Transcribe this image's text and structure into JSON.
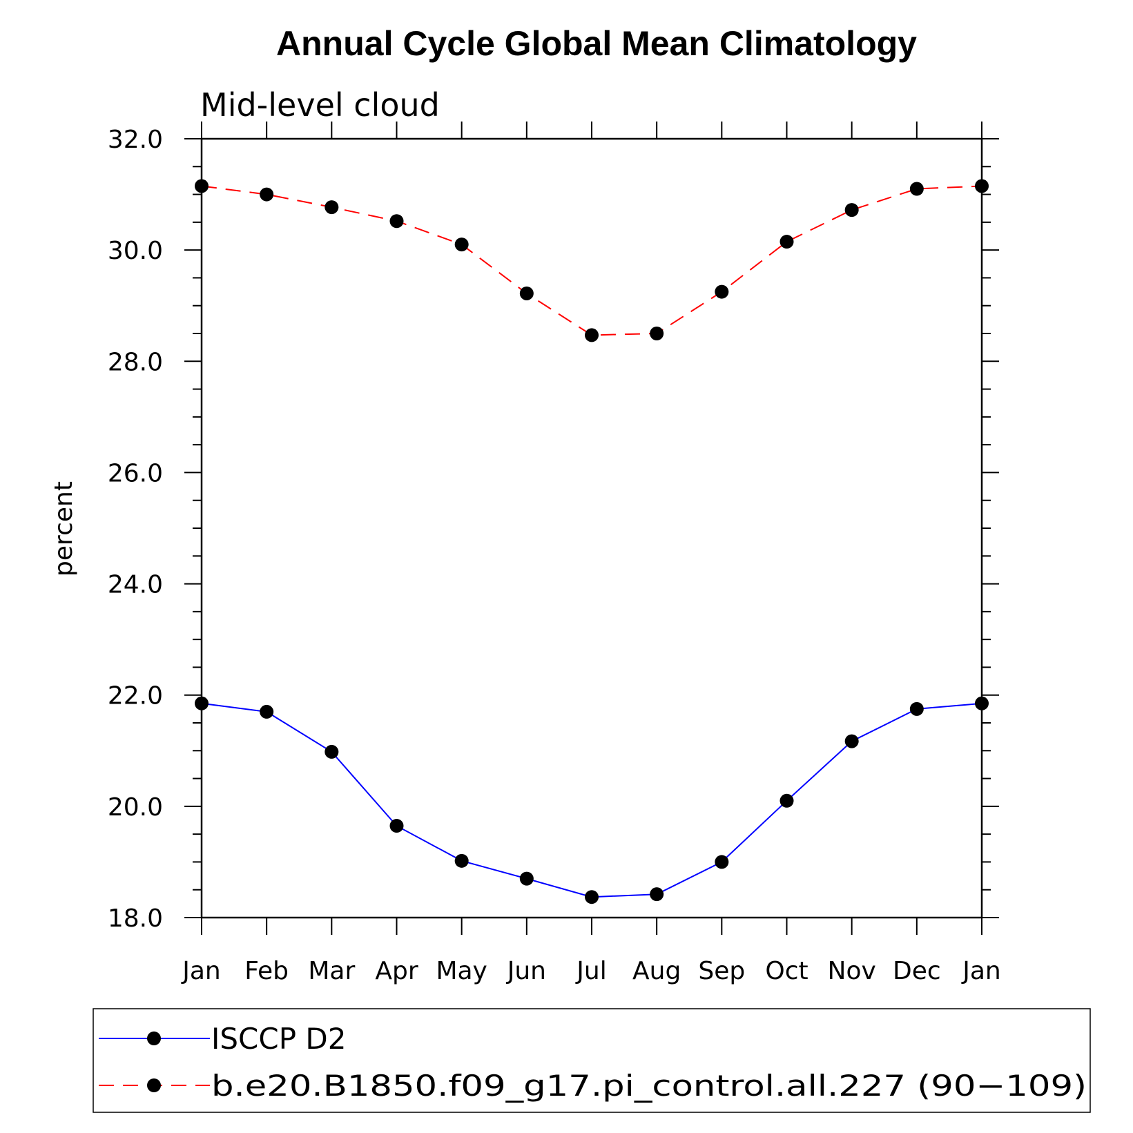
{
  "chart_data": {
    "type": "line",
    "title": "Annual Cycle Global Mean Climatology",
    "subtitle": "Mid-level cloud",
    "xlabel": "",
    "ylabel": "percent",
    "ylim": [
      18.0,
      32.0
    ],
    "yticks": [
      "18.0",
      "20.0",
      "22.0",
      "24.0",
      "26.0",
      "28.0",
      "30.0",
      "32.0"
    ],
    "yminor_step": 0.5,
    "categories": [
      "Jan",
      "Feb",
      "Mar",
      "Apr",
      "May",
      "Jun",
      "Jul",
      "Aug",
      "Sep",
      "Oct",
      "Nov",
      "Dec",
      "Jan"
    ],
    "series": [
      {
        "name": "ISCCP D2",
        "color": "#0000ff",
        "dashed": false,
        "values": [
          21.85,
          21.7,
          20.98,
          19.65,
          19.02,
          18.7,
          18.37,
          18.42,
          19.0,
          20.1,
          21.17,
          21.75,
          21.85
        ]
      },
      {
        "name": "b.e20.B1850.f09_g17.pi_control.all.227 (90−109)",
        "color": "#ff0000",
        "dashed": true,
        "values": [
          31.15,
          31.0,
          30.77,
          30.52,
          30.1,
          29.22,
          28.47,
          28.5,
          29.25,
          30.15,
          30.72,
          31.1,
          31.15
        ]
      }
    ],
    "marker_color": "#000000",
    "legend_position": "bottom"
  }
}
